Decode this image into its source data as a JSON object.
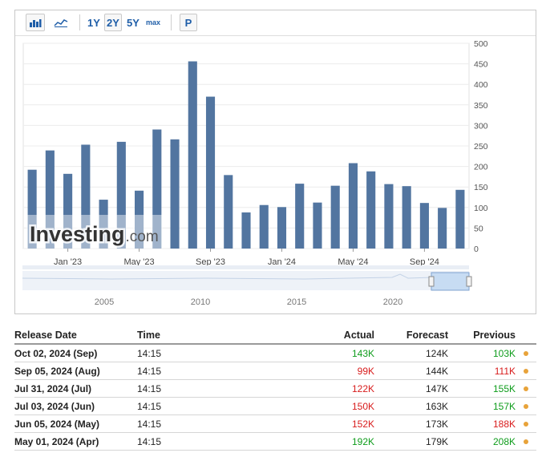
{
  "toolbar": {
    "bar_icon": "bar-chart-icon",
    "line_icon": "area-chart-icon",
    "range_buttons": [
      "1Y",
      "2Y",
      "5Y",
      "max"
    ],
    "selected_range": "2Y",
    "p_button": "P"
  },
  "watermark": {
    "brand": "Investing",
    "suffix": ".com"
  },
  "navigator": {
    "years": [
      "2005",
      "2010",
      "2015",
      "2020"
    ]
  },
  "chart_data": {
    "type": "bar",
    "x_labels": [
      "Jan '23",
      "May '23",
      "Sep '23",
      "Jan '24",
      "May '24",
      "Sep '24"
    ],
    "values": [
      192,
      239,
      182,
      253,
      119,
      260,
      141,
      290,
      266,
      456,
      370,
      179,
      88,
      106,
      101,
      158,
      112,
      153,
      208,
      188,
      157,
      152,
      111,
      99,
      143
    ],
    "ylim": [
      0,
      500
    ],
    "yticks": [
      0,
      50,
      100,
      150,
      200,
      250,
      300,
      350,
      400,
      450,
      500
    ],
    "bar_color": "#5275a0",
    "grid": true
  },
  "table": {
    "headers": {
      "date": "Release Date",
      "time": "Time",
      "actual": "Actual",
      "forecast": "Forecast",
      "previous": "Previous"
    },
    "rows": [
      {
        "date": "Oct 02, 2024 (Sep)",
        "time": "14:15",
        "actual": "143K",
        "actual_color": "green",
        "forecast": "124K",
        "previous": "103K",
        "previous_color": "green"
      },
      {
        "date": "Sep 05, 2024 (Aug)",
        "time": "14:15",
        "actual": "99K",
        "actual_color": "red",
        "forecast": "144K",
        "previous": "111K",
        "previous_color": "red"
      },
      {
        "date": "Jul 31, 2024 (Jul)",
        "time": "14:15",
        "actual": "122K",
        "actual_color": "red",
        "forecast": "147K",
        "previous": "155K",
        "previous_color": "green"
      },
      {
        "date": "Jul 03, 2024 (Jun)",
        "time": "14:15",
        "actual": "150K",
        "actual_color": "red",
        "forecast": "163K",
        "previous": "157K",
        "previous_color": "green"
      },
      {
        "date": "Jun 05, 2024 (May)",
        "time": "14:15",
        "actual": "152K",
        "actual_color": "red",
        "forecast": "173K",
        "previous": "188K",
        "previous_color": "red"
      },
      {
        "date": "May 01, 2024 (Apr)",
        "time": "14:15",
        "actual": "192K",
        "actual_color": "green",
        "forecast": "179K",
        "previous": "208K",
        "previous_color": "green"
      }
    ]
  }
}
